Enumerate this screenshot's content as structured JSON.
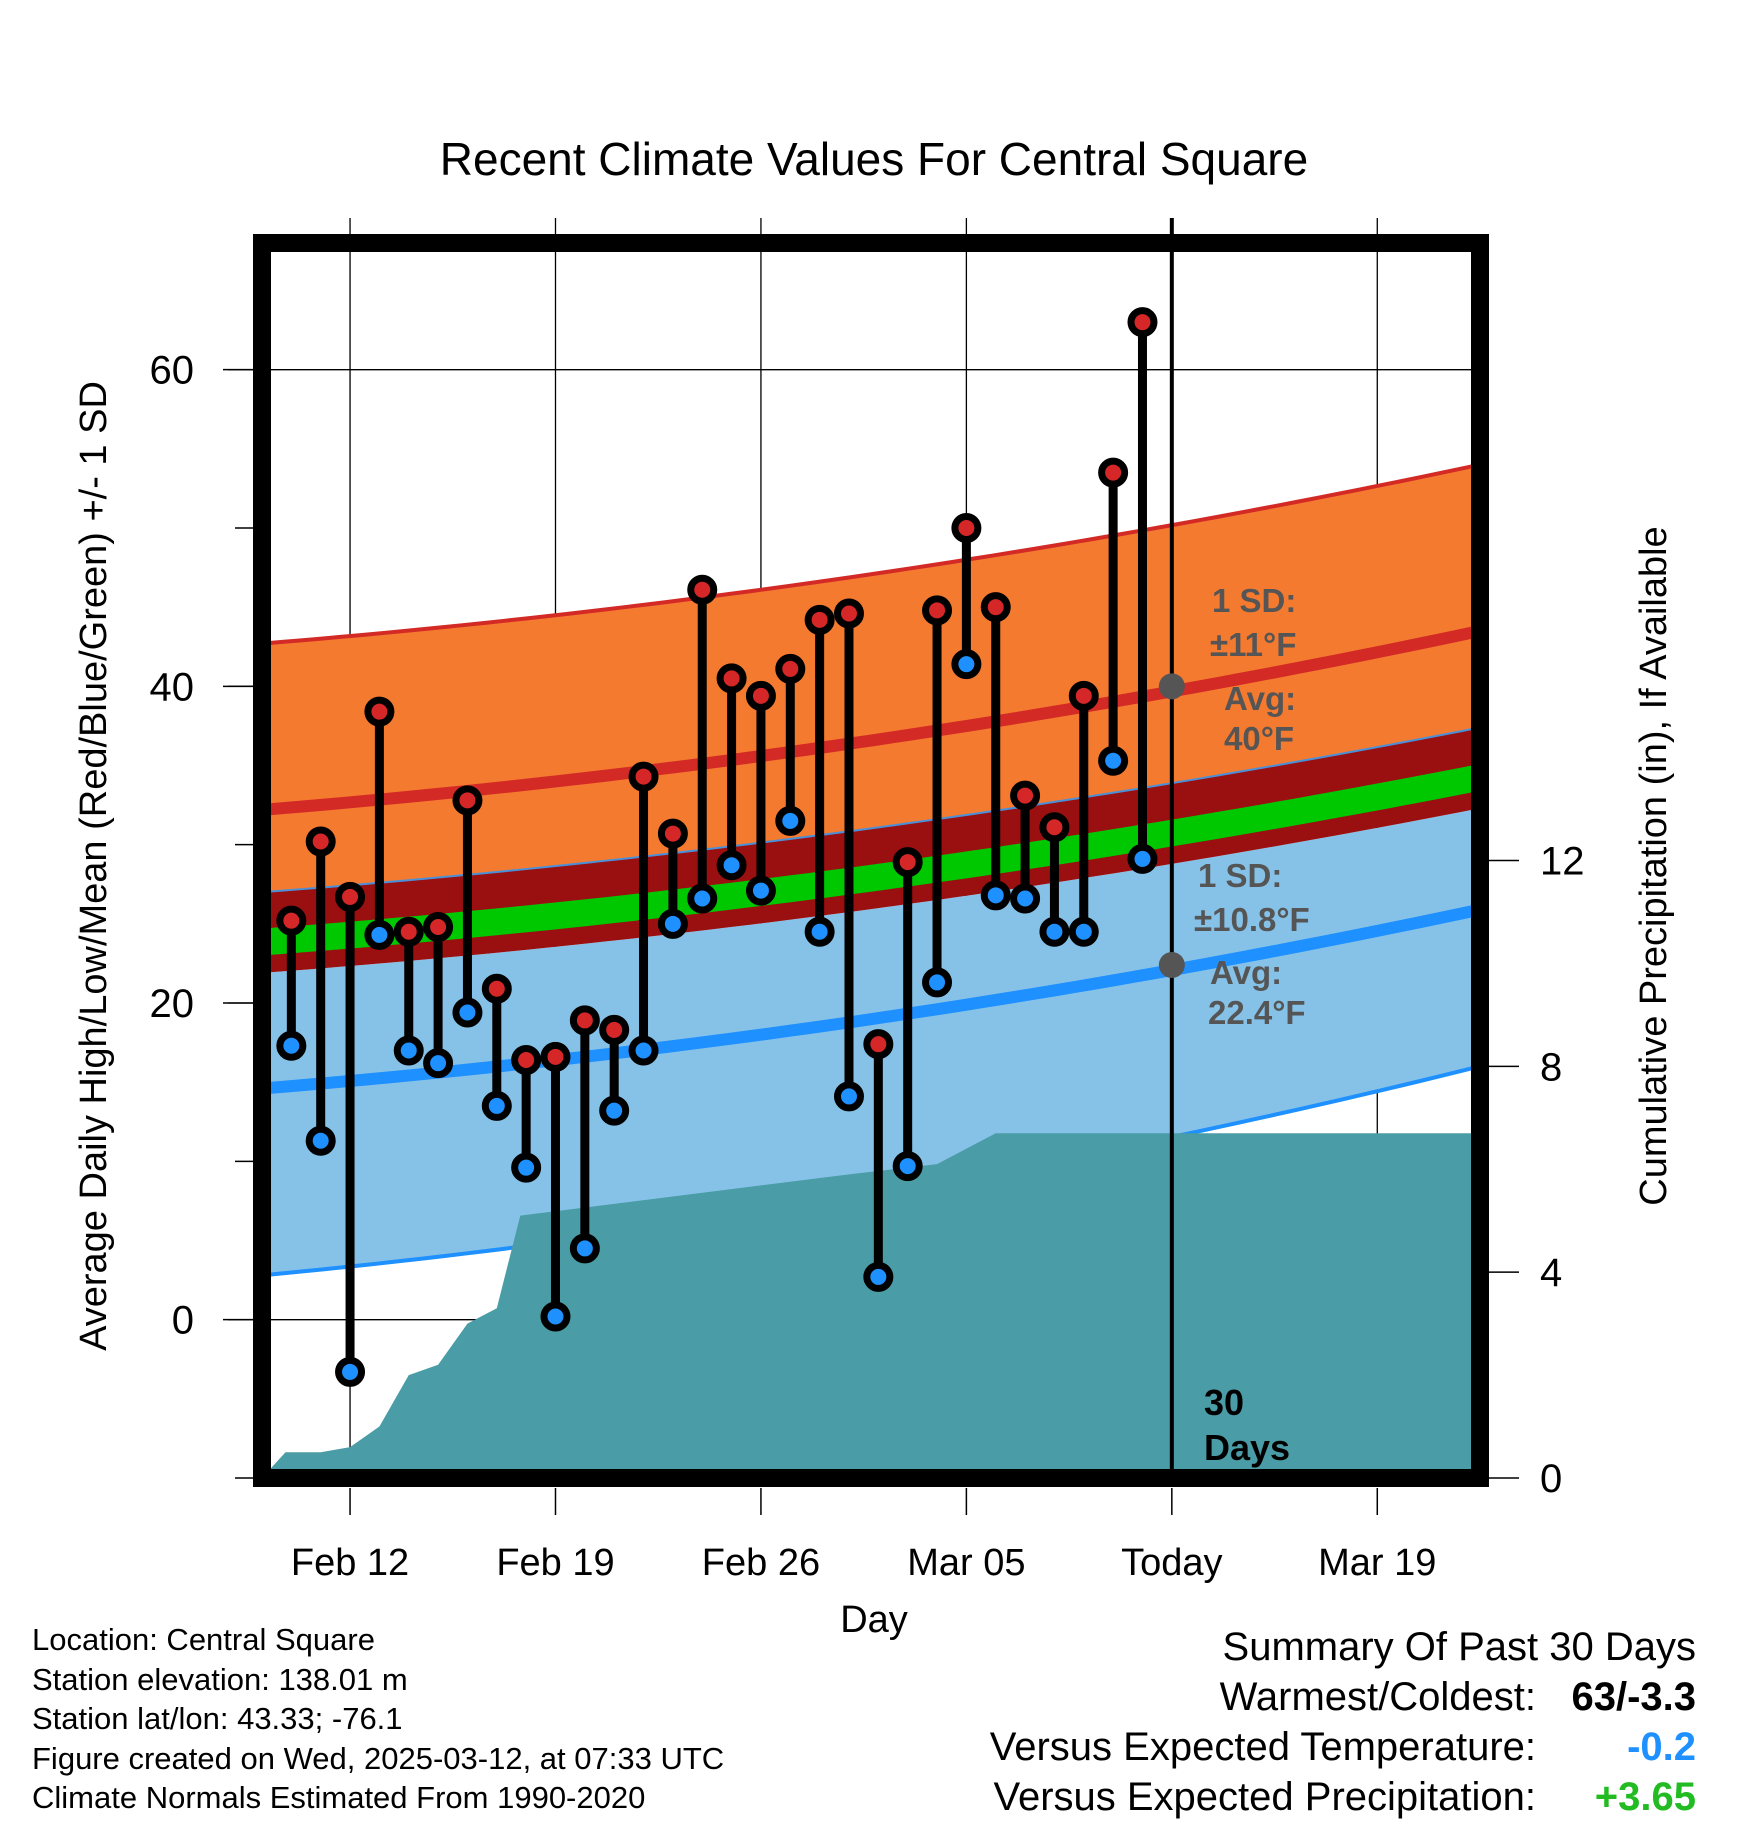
{
  "chart_data": {
    "type": "line",
    "title": "Recent Climate Values For Central Square",
    "xlabel": "Day",
    "ylabel": "Average Daily High/Low/Mean (Red/Blue/Green) +/- 1 SD",
    "y2label": "Cumulative Precipitation (in), If Available",
    "x_tick_labels": [
      "Feb 12",
      "Feb 19",
      "Feb 26",
      "Mar 05",
      "Today",
      "Mar 19"
    ],
    "x_tick_days": [
      3,
      10,
      17,
      24,
      31,
      38
    ],
    "ylim": [
      -10,
      68
    ],
    "yticks": [
      0,
      20,
      40,
      60
    ],
    "y2lim": [
      0,
      24
    ],
    "y2ticks": [
      0,
      4,
      8,
      12
    ],
    "xlim": [
      0,
      41.5
    ],
    "grid": true,
    "today_day": 31,
    "today_label": "30 Days",
    "day_index": [
      1,
      2,
      3,
      4,
      5,
      6,
      7,
      8,
      9,
      10,
      11,
      12,
      13,
      14,
      15,
      16,
      17,
      18,
      19,
      20,
      21,
      22,
      23,
      24,
      25,
      26,
      27,
      28,
      29,
      30
    ],
    "series": [
      {
        "name": "High",
        "color": "#d62728",
        "values": [
          25.2,
          30.2,
          26.7,
          38.4,
          24.5,
          24.8,
          32.8,
          20.9,
          16.4,
          16.6,
          18.9,
          18.3,
          34.3,
          30.7,
          46.1,
          40.5,
          39.4,
          41.1,
          44.2,
          44.6,
          17.4,
          28.9,
          44.8,
          50.0,
          45.0,
          33.1,
          31.1,
          39.4,
          53.5,
          63.0
        ]
      },
      {
        "name": "Low",
        "color": "#1e90ff",
        "values": [
          17.3,
          11.3,
          -3.3,
          24.3,
          17.0,
          16.2,
          19.4,
          13.5,
          9.6,
          0.2,
          4.5,
          13.2,
          17.0,
          25.0,
          26.6,
          28.7,
          27.1,
          31.5,
          24.5,
          14.1,
          2.7,
          9.7,
          21.3,
          41.4,
          26.8,
          26.6,
          24.5,
          24.5,
          35.3,
          29.1
        ]
      }
    ],
    "normals": {
      "high_avg": {
        "d0": 32.2,
        "d41": 43.5
      },
      "high_sd_upper": {
        "d0": 42.7,
        "d41": 54.0
      },
      "low_avg": {
        "d0": 14.6,
        "d41": 25.9
      },
      "low_sd_lower": {
        "d0": 2.8,
        "d41": 16.0
      },
      "mean_avg": {
        "d0": 23.8,
        "d41": 34.2
      }
    },
    "precip_cumulative": [
      [
        0,
        0
      ],
      [
        0.8,
        0.5
      ],
      [
        2,
        0.5
      ],
      [
        3,
        0.6
      ],
      [
        4,
        1
      ],
      [
        5,
        2
      ],
      [
        6,
        2.2
      ],
      [
        7,
        3
      ],
      [
        8,
        3.3
      ],
      [
        8.8,
        5.1
      ],
      [
        20,
        5.9
      ],
      [
        23,
        6.1
      ],
      [
        25,
        6.7
      ],
      [
        31,
        6.7
      ],
      [
        41.5,
        6.7
      ]
    ],
    "annotations": {
      "high_sd": "1 SD:",
      "high_sd_value": "±11°F",
      "high_avg": "Avg:",
      "high_avg_value": "40°F",
      "low_sd": "1 SD:",
      "low_sd_value": "±10.8°F",
      "low_avg": "Avg:",
      "low_avg_value": "22.4°F",
      "today_high_avg": 40,
      "today_low_avg": 22.4
    },
    "colors": {
      "high_band": "#f47a30",
      "high_line": "#d32a26",
      "low_band": "#86c2e8",
      "low_line": "#1e90ff",
      "mean_band": "#9a0f10",
      "mean_line": "#00c800",
      "precip": "#4a9ca6",
      "annotation": "#555555"
    }
  },
  "meta": {
    "location": "Location: Central Square",
    "elevation": "Station elevation: 138.01 m",
    "latlon": "Station lat/lon: 43.33; -76.1",
    "created": "Figure created on Wed, 2025-03-12, at 07:33 UTC",
    "normals": "Climate Normals Estimated From 1990-2020"
  },
  "summary": {
    "title": "Summary Of Past 30 Days",
    "warmest_label": "Warmest/Coldest:",
    "warmest_value": "63/-3.3",
    "temp_label": "Versus Expected Temperature:",
    "temp_value": "-0.2",
    "temp_color": "#1e90ff",
    "precip_label": "Versus Expected Precipitation:",
    "precip_value": "+3.65",
    "precip_color": "#22bb22"
  }
}
